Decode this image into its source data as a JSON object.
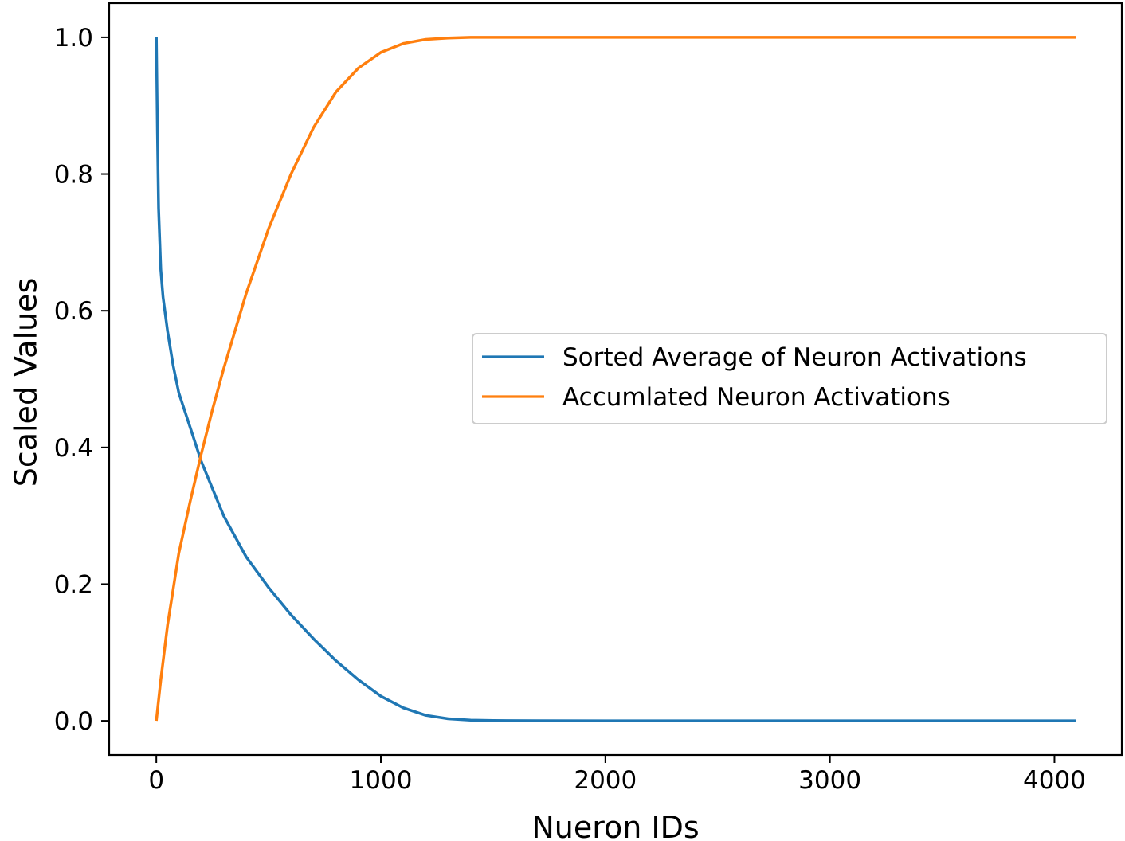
{
  "chart_data": {
    "type": "line",
    "title": "",
    "xlabel": "Nueron IDs",
    "ylabel": "Scaled Values",
    "xlim": [
      -210,
      4300
    ],
    "ylim": [
      -0.05,
      1.05
    ],
    "xticks": [
      0,
      1000,
      2000,
      3000,
      4000
    ],
    "xtick_labels": [
      "0",
      "1000",
      "2000",
      "3000",
      "4000"
    ],
    "yticks": [
      0.0,
      0.2,
      0.4,
      0.6,
      0.8,
      1.0
    ],
    "ytick_labels": [
      "0.0",
      "0.2",
      "0.4",
      "0.6",
      "0.8",
      "1.0"
    ],
    "grid": false,
    "legend_position": "center-right",
    "series": [
      {
        "name": "Sorted Average of Neuron Activations",
        "color": "#1f77b4",
        "x": [
          0,
          5,
          10,
          20,
          30,
          50,
          75,
          100,
          150,
          200,
          250,
          300,
          400,
          500,
          600,
          700,
          800,
          900,
          1000,
          1100,
          1200,
          1300,
          1400,
          1500,
          1700,
          2000,
          2500,
          3000,
          3500,
          4096
        ],
        "y": [
          1.0,
          0.86,
          0.75,
          0.66,
          0.62,
          0.57,
          0.52,
          0.48,
          0.43,
          0.38,
          0.34,
          0.3,
          0.24,
          0.195,
          0.155,
          0.12,
          0.088,
          0.06,
          0.036,
          0.019,
          0.008,
          0.003,
          0.001,
          0.0003,
          0.0001,
          0.0,
          0.0,
          0.0,
          0.0,
          0.0
        ]
      },
      {
        "name": "Accumlated Neuron Activations",
        "color": "#ff7f0e",
        "x": [
          0,
          20,
          50,
          100,
          150,
          200,
          250,
          300,
          400,
          500,
          600,
          700,
          800,
          900,
          1000,
          1100,
          1200,
          1300,
          1400,
          1500,
          1700,
          2000,
          2500,
          3000,
          3500,
          4096
        ],
        "y": [
          0.0,
          0.06,
          0.14,
          0.245,
          0.32,
          0.39,
          0.455,
          0.515,
          0.625,
          0.72,
          0.8,
          0.868,
          0.92,
          0.955,
          0.978,
          0.991,
          0.997,
          0.999,
          1.0,
          1.0,
          1.0,
          1.0,
          1.0,
          1.0,
          1.0,
          1.0
        ]
      }
    ]
  }
}
